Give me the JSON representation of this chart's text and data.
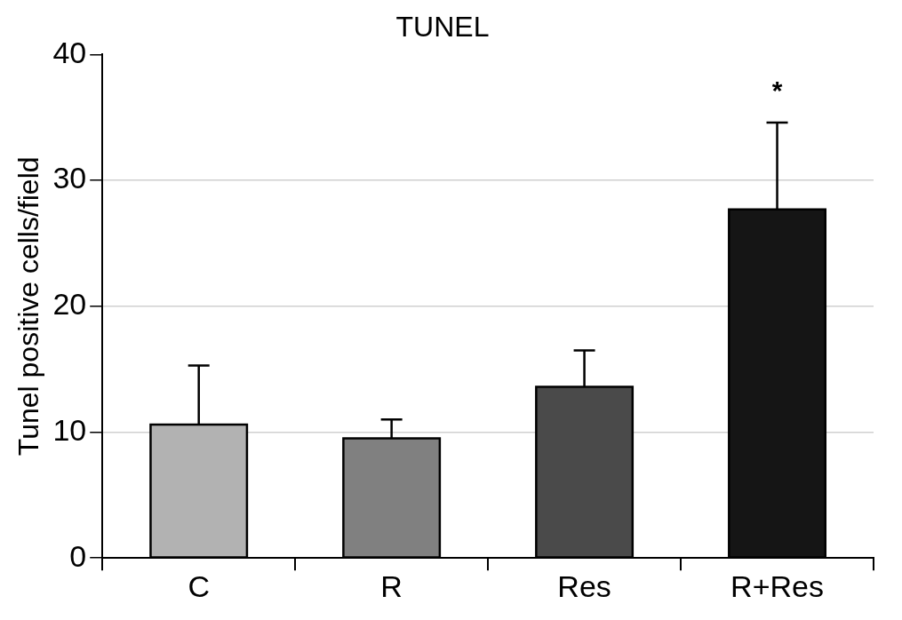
{
  "chart_data": {
    "type": "bar",
    "title": "TUNEL",
    "ylabel": "Tunel positive cells/field",
    "categories": [
      "C",
      "R",
      "Res",
      "R+Res"
    ],
    "values": [
      10.6,
      9.5,
      13.6,
      27.7
    ],
    "colors": [
      "#b2b2b2",
      "#808080",
      "#4a4a4a",
      "#151515"
    ],
    "errors": [
      [
        10.6,
        15.3
      ],
      [
        9.5,
        11.0
      ],
      [
        13.6,
        16.5
      ],
      [
        27.7,
        34.6
      ]
    ],
    "ylim": [
      0,
      40
    ],
    "yticks": [
      0,
      10,
      20,
      30,
      40
    ],
    "grid": "y",
    "legend": false,
    "annotations": [
      "*"
    ]
  }
}
